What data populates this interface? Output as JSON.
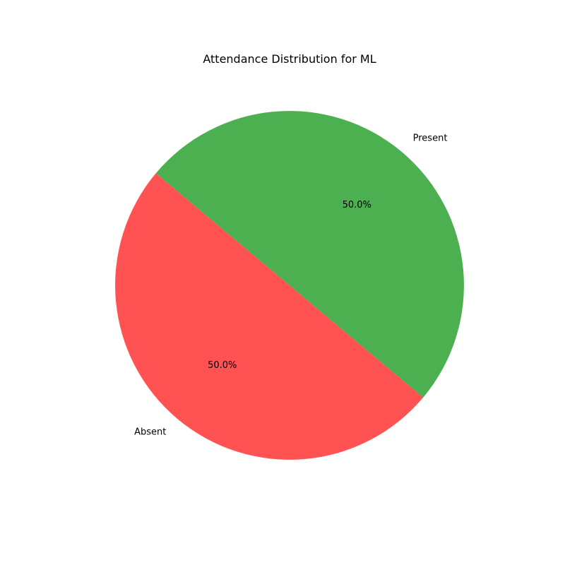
{
  "chart_data": {
    "type": "pie",
    "title": "Attendance Distribution for ML",
    "categories": [
      "Absent",
      "Present"
    ],
    "values": [
      50.0,
      50.0
    ],
    "percent_labels": [
      "50.0%",
      "50.0%"
    ],
    "colors": [
      "#ff5252",
      "#4caf50"
    ],
    "start_angle_deg": 140,
    "legend": "none"
  }
}
